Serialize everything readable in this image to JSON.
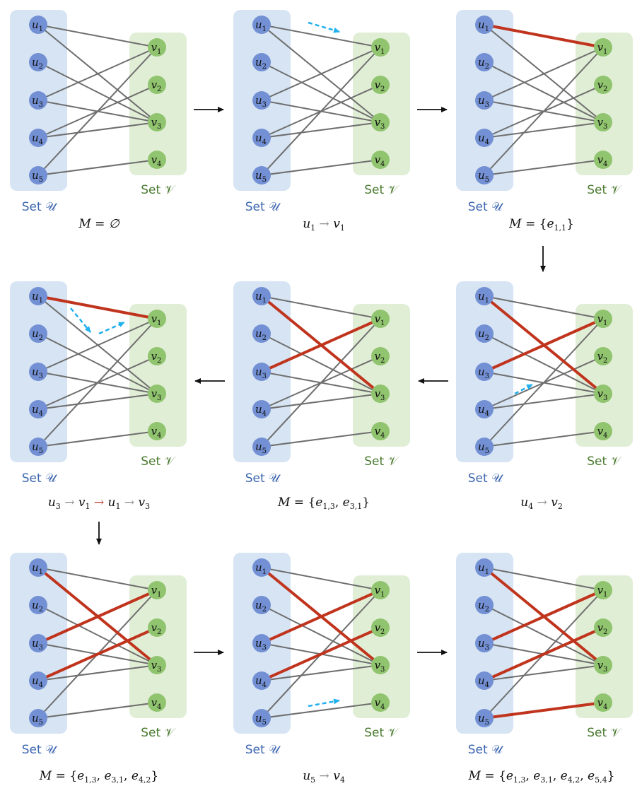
{
  "set_u_label": "Set 𝒰",
  "set_v_label": "Set 𝒱",
  "u_nodes": [
    {
      "name": "u",
      "sub": "1"
    },
    {
      "name": "u",
      "sub": "2"
    },
    {
      "name": "u",
      "sub": "3"
    },
    {
      "name": "u",
      "sub": "4"
    },
    {
      "name": "u",
      "sub": "5"
    }
  ],
  "v_nodes": [
    {
      "name": "v",
      "sub": "1"
    },
    {
      "name": "v",
      "sub": "2"
    },
    {
      "name": "v",
      "sub": "3"
    },
    {
      "name": "v",
      "sub": "4"
    }
  ],
  "edges": [
    [
      1,
      1
    ],
    [
      1,
      3
    ],
    [
      2,
      3
    ],
    [
      3,
      1
    ],
    [
      3,
      3
    ],
    [
      4,
      2
    ],
    [
      4,
      3
    ],
    [
      5,
      1
    ],
    [
      5,
      4
    ]
  ],
  "colors": {
    "set_u_bg": "#d6e4f3",
    "set_v_bg": "#e1eed6",
    "u_node": "#7390d4",
    "v_node": "#90c46e",
    "u_text": "#3d66b0",
    "v_text": "#4a7a30",
    "edge": "#6e6e6e",
    "matched": "#c0341d",
    "search": "#1fb0ee",
    "arrow": "#111111"
  },
  "panels": [
    {
      "id": 1,
      "matched": [],
      "search": [],
      "caption": [
        {
          "t": "M = ∅"
        }
      ]
    },
    {
      "id": 2,
      "matched": [],
      "search": [
        {
          "from": [
            1,
            1
          ],
          "to": [
            1,
            1
          ],
          "kind": "u1v1"
        }
      ],
      "caption": [
        {
          "t": "u"
        },
        {
          "s": "1"
        },
        {
          "a": " → ",
          "c": "gray"
        },
        {
          "t": "v"
        },
        {
          "s": "1"
        }
      ]
    },
    {
      "id": 3,
      "matched": [
        [
          1,
          1
        ]
      ],
      "search": [],
      "caption": [
        {
          "t": "M = "
        },
        {
          "u": "{"
        },
        {
          "t": "e"
        },
        {
          "s": "1,1"
        },
        {
          "u": "}"
        }
      ]
    },
    {
      "id": 4,
      "matched": [
        [
          1,
          1
        ]
      ],
      "search": [
        {
          "kind": "u3path"
        }
      ],
      "caption": [
        {
          "t": "u"
        },
        {
          "s": "3"
        },
        {
          "a": " → ",
          "c": "gray"
        },
        {
          "t": "v"
        },
        {
          "s": "1"
        },
        {
          "a": " → ",
          "c": "red"
        },
        {
          "t": "u"
        },
        {
          "s": "1"
        },
        {
          "a": " → ",
          "c": "gray"
        },
        {
          "t": "v"
        },
        {
          "s": "3"
        }
      ]
    },
    {
      "id": 5,
      "matched": [
        [
          1,
          3
        ],
        [
          3,
          1
        ]
      ],
      "search": [],
      "caption": [
        {
          "t": "M = "
        },
        {
          "u": "{"
        },
        {
          "t": "e"
        },
        {
          "s": "1,3"
        },
        {
          "u": ", "
        },
        {
          "t": "e"
        },
        {
          "s": "3,1"
        },
        {
          "u": "}"
        }
      ]
    },
    {
      "id": 6,
      "matched": [
        [
          1,
          3
        ],
        [
          3,
          1
        ]
      ],
      "search": [
        {
          "kind": "u4v2"
        }
      ],
      "caption": [
        {
          "t": "u"
        },
        {
          "s": "4"
        },
        {
          "a": " → ",
          "c": "gray"
        },
        {
          "t": "v"
        },
        {
          "s": "2"
        }
      ]
    },
    {
      "id": 7,
      "matched": [
        [
          1,
          3
        ],
        [
          3,
          1
        ],
        [
          4,
          2
        ]
      ],
      "search": [],
      "caption": [
        {
          "t": "M = "
        },
        {
          "u": "{"
        },
        {
          "t": "e"
        },
        {
          "s": "1,3"
        },
        {
          "u": ", "
        },
        {
          "t": "e"
        },
        {
          "s": "3,1"
        },
        {
          "u": ", "
        },
        {
          "t": "e"
        },
        {
          "s": "4,2"
        },
        {
          "u": "}"
        }
      ]
    },
    {
      "id": 8,
      "matched": [
        [
          1,
          3
        ],
        [
          3,
          1
        ],
        [
          4,
          2
        ]
      ],
      "search": [
        {
          "kind": "u5v4"
        }
      ],
      "caption": [
        {
          "t": "u"
        },
        {
          "s": "5"
        },
        {
          "a": " → ",
          "c": "gray"
        },
        {
          "t": "v"
        },
        {
          "s": "4"
        }
      ]
    },
    {
      "id": 9,
      "matched": [
        [
          1,
          3
        ],
        [
          3,
          1
        ],
        [
          4,
          2
        ],
        [
          5,
          4
        ]
      ],
      "search": [],
      "caption": [
        {
          "t": "M = "
        },
        {
          "u": "{"
        },
        {
          "t": "e"
        },
        {
          "s": "1,3"
        },
        {
          "u": ", "
        },
        {
          "t": "e"
        },
        {
          "s": "3,1"
        },
        {
          "u": ", "
        },
        {
          "t": "e"
        },
        {
          "s": "4,2"
        },
        {
          "u": ", "
        },
        {
          "t": "e"
        },
        {
          "s": "5,4"
        },
        {
          "u": "}"
        }
      ]
    }
  ]
}
